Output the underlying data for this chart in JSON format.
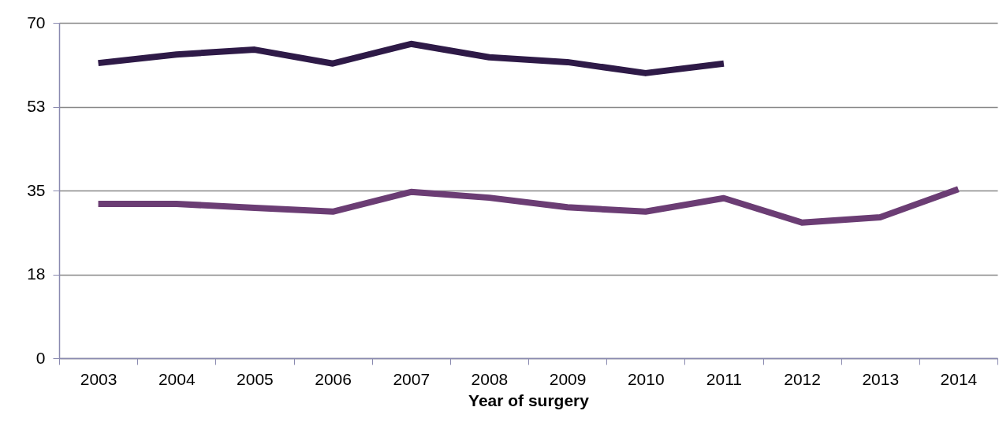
{
  "chart_data": {
    "type": "line",
    "xlabel": "Year of surgery",
    "categories": [
      "2003",
      "2004",
      "2005",
      "2006",
      "2007",
      "2008",
      "2009",
      "2010",
      "2011",
      "2012",
      "2013",
      "2014"
    ],
    "series": [
      {
        "color": "#2e1a47",
        "values": [
          61.6,
          63.4,
          64.4,
          61.5,
          65.6,
          62.8,
          61.8,
          59.5,
          61.5,
          null,
          null,
          null
        ]
      },
      {
        "color": "#6b3d74",
        "values": [
          32.2,
          32.2,
          31.4,
          30.6,
          34.7,
          33.5,
          31.5,
          30.6,
          33.4,
          28.3,
          29.4,
          35.3
        ]
      }
    ],
    "ylim": [
      0,
      70
    ],
    "yticks": [
      0,
      {
        "value": 17.5,
        "label": "18"
      },
      35,
      {
        "value": 52.5,
        "label": "53"
      },
      70
    ],
    "grid": "y",
    "legend": false,
    "marker": "none",
    "line_style": "solid"
  }
}
